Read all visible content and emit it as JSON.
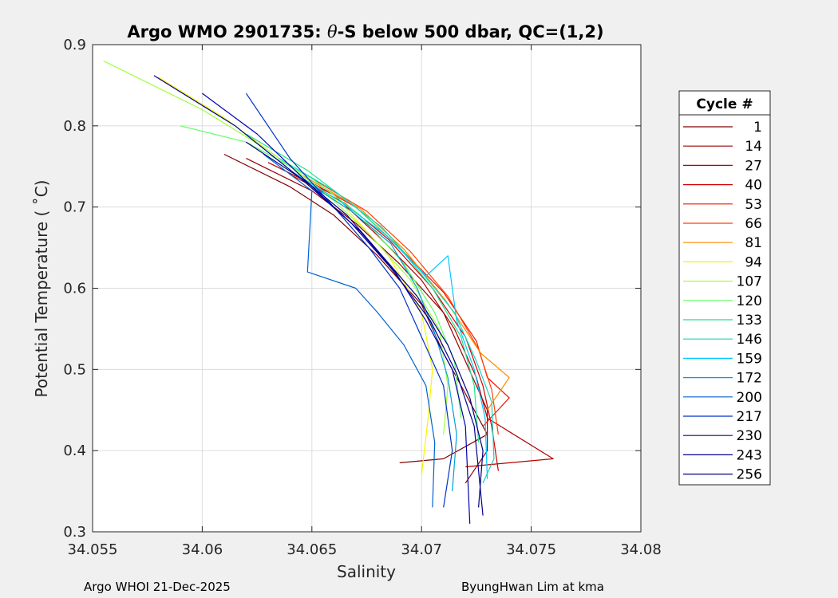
{
  "chart_data": {
    "type": "line",
    "title": "Argo WMO 2901735: θ-S below 500 dbar,  QC=(1,2)",
    "title_parts": {
      "prefix": "Argo WMO 2901735: ",
      "theta": "θ",
      "suffix": "-S below 500 dbar,  QC=(1,2)"
    },
    "xlabel": "Salinity",
    "ylabel": "Potential Temperature ( ˚C)",
    "xlim": [
      34.055,
      34.08
    ],
    "ylim": [
      0.3,
      0.9
    ],
    "xticks": [
      34.055,
      34.06,
      34.065,
      34.07,
      34.075,
      34.08
    ],
    "xtick_labels": [
      "34.055",
      "34.06",
      "34.065",
      "34.07",
      "34.075",
      "34.08"
    ],
    "yticks": [
      0.3,
      0.4,
      0.5,
      0.6,
      0.7,
      0.8,
      0.9
    ],
    "ytick_labels": [
      "0.3",
      "0.4",
      "0.5",
      "0.6",
      "0.7",
      "0.8",
      "0.9"
    ],
    "grid": true,
    "legend_placement": "outside-right",
    "legend_title": "Cycle #",
    "series": [
      {
        "name": "1",
        "color": "#800000",
        "points": [
          [
            34.061,
            0.765
          ],
          [
            34.064,
            0.725
          ],
          [
            34.066,
            0.69
          ],
          [
            34.068,
            0.64
          ],
          [
            34.07,
            0.58
          ],
          [
            34.071,
            0.52
          ],
          [
            34.072,
            0.47
          ],
          [
            34.073,
            0.42
          ],
          [
            34.071,
            0.39
          ],
          [
            34.069,
            0.385
          ]
        ]
      },
      {
        "name": "14",
        "color": "#9a0000",
        "points": [
          [
            34.062,
            0.76
          ],
          [
            34.065,
            0.72
          ],
          [
            34.067,
            0.68
          ],
          [
            34.069,
            0.63
          ],
          [
            34.071,
            0.57
          ],
          [
            34.072,
            0.51
          ],
          [
            34.073,
            0.45
          ],
          [
            34.073,
            0.4
          ],
          [
            34.072,
            0.36
          ]
        ]
      },
      {
        "name": "27",
        "color": "#b40000",
        "points": [
          [
            34.063,
            0.755
          ],
          [
            34.066,
            0.715
          ],
          [
            34.068,
            0.665
          ],
          [
            34.07,
            0.61
          ],
          [
            34.0715,
            0.55
          ],
          [
            34.0725,
            0.49
          ],
          [
            34.073,
            0.44
          ],
          [
            34.076,
            0.39
          ],
          [
            34.072,
            0.38
          ]
        ]
      },
      {
        "name": "40",
        "color": "#d20000",
        "points": [
          [
            34.064,
            0.74
          ],
          [
            34.0665,
            0.705
          ],
          [
            34.0685,
            0.66
          ],
          [
            34.0705,
            0.6
          ],
          [
            34.072,
            0.54
          ],
          [
            34.0728,
            0.48
          ],
          [
            34.0732,
            0.43
          ],
          [
            34.0735,
            0.375
          ]
        ]
      },
      {
        "name": "53",
        "color": "#f01400",
        "points": [
          [
            34.065,
            0.73
          ],
          [
            34.067,
            0.7
          ],
          [
            34.069,
            0.65
          ],
          [
            34.071,
            0.595
          ],
          [
            34.0725,
            0.535
          ],
          [
            34.073,
            0.49
          ],
          [
            34.074,
            0.465
          ],
          [
            34.0728,
            0.43
          ]
        ]
      },
      {
        "name": "66",
        "color": "#ff4000",
        "points": [
          [
            34.065,
            0.735
          ],
          [
            34.0675,
            0.695
          ],
          [
            34.0695,
            0.645
          ],
          [
            34.0712,
            0.59
          ],
          [
            34.0726,
            0.525
          ],
          [
            34.0732,
            0.475
          ],
          [
            34.0735,
            0.42
          ]
        ]
      },
      {
        "name": "81",
        "color": "#ff8c00",
        "points": [
          [
            34.0645,
            0.74
          ],
          [
            34.0672,
            0.698
          ],
          [
            34.0692,
            0.648
          ],
          [
            34.0711,
            0.585
          ],
          [
            34.0727,
            0.52
          ],
          [
            34.074,
            0.49
          ],
          [
            34.073,
            0.45
          ]
        ]
      },
      {
        "name": "94",
        "color": "#f5f500",
        "points": [
          [
            34.058,
            0.86
          ],
          [
            34.061,
            0.81
          ],
          [
            34.064,
            0.75
          ],
          [
            34.0665,
            0.7
          ],
          [
            34.0685,
            0.64
          ],
          [
            34.07,
            0.57
          ],
          [
            34.0705,
            0.5
          ],
          [
            34.0703,
            0.44
          ],
          [
            34.07,
            0.37
          ]
        ]
      },
      {
        "name": "107",
        "color": "#a0ff40",
        "points": [
          [
            34.0555,
            0.88
          ],
          [
            34.06,
            0.82
          ],
          [
            34.063,
            0.77
          ],
          [
            34.0655,
            0.72
          ],
          [
            34.0675,
            0.67
          ],
          [
            34.0695,
            0.61
          ],
          [
            34.0708,
            0.55
          ],
          [
            34.0712,
            0.48
          ],
          [
            34.071,
            0.42
          ]
        ]
      },
      {
        "name": "120",
        "color": "#60ff60",
        "points": [
          [
            34.059,
            0.8
          ],
          [
            34.062,
            0.78
          ],
          [
            34.065,
            0.735
          ],
          [
            34.0672,
            0.69
          ],
          [
            34.0692,
            0.63
          ],
          [
            34.0706,
            0.57
          ],
          [
            34.0715,
            0.51
          ],
          [
            34.0718,
            0.44
          ]
        ]
      },
      {
        "name": "133",
        "color": "#20e090",
        "points": [
          [
            34.062,
            0.79
          ],
          [
            34.0648,
            0.745
          ],
          [
            34.067,
            0.7
          ],
          [
            34.069,
            0.65
          ],
          [
            34.0705,
            0.6
          ],
          [
            34.0718,
            0.54
          ],
          [
            34.0724,
            0.48
          ],
          [
            34.0726,
            0.41
          ]
        ]
      },
      {
        "name": "146",
        "color": "#10d8c0",
        "points": [
          [
            34.0635,
            0.76
          ],
          [
            34.066,
            0.72
          ],
          [
            34.0682,
            0.675
          ],
          [
            34.07,
            0.62
          ],
          [
            34.0715,
            0.57
          ],
          [
            34.0725,
            0.51
          ],
          [
            34.0732,
            0.46
          ],
          [
            34.0733,
            0.39
          ],
          [
            34.0728,
            0.36
          ]
        ]
      },
      {
        "name": "159",
        "color": "#00c8ff",
        "points": [
          [
            34.064,
            0.745
          ],
          [
            34.0664,
            0.705
          ],
          [
            34.0684,
            0.665
          ],
          [
            34.0702,
            0.615
          ],
          [
            34.0712,
            0.64
          ],
          [
            34.0716,
            0.56
          ],
          [
            34.0724,
            0.5
          ],
          [
            34.0729,
            0.44
          ],
          [
            34.073,
            0.365
          ]
        ]
      },
      {
        "name": "172",
        "color": "#00a0d8",
        "points": [
          [
            34.0645,
            0.735
          ],
          [
            34.0668,
            0.695
          ],
          [
            34.0686,
            0.655
          ],
          [
            34.0698,
            0.6
          ],
          [
            34.0706,
            0.545
          ],
          [
            34.0712,
            0.49
          ],
          [
            34.0716,
            0.42
          ],
          [
            34.0714,
            0.35
          ]
        ]
      },
      {
        "name": "200",
        "color": "#0064d0",
        "points": [
          [
            34.0628,
            0.765
          ],
          [
            34.065,
            0.72
          ],
          [
            34.0648,
            0.62
          ],
          [
            34.067,
            0.6
          ],
          [
            34.068,
            0.57
          ],
          [
            34.0692,
            0.53
          ],
          [
            34.0702,
            0.48
          ],
          [
            34.0706,
            0.41
          ],
          [
            34.0705,
            0.33
          ]
        ]
      },
      {
        "name": "217",
        "color": "#0032c8",
        "points": [
          [
            34.062,
            0.84
          ],
          [
            34.064,
            0.76
          ],
          [
            34.066,
            0.7
          ],
          [
            34.0676,
            0.65
          ],
          [
            34.069,
            0.6
          ],
          [
            34.07,
            0.54
          ],
          [
            34.071,
            0.48
          ],
          [
            34.0714,
            0.4
          ],
          [
            34.071,
            0.33
          ]
        ]
      },
      {
        "name": "230",
        "color": "#0000b0",
        "points": [
          [
            34.06,
            0.84
          ],
          [
            34.0625,
            0.79
          ],
          [
            34.0652,
            0.72
          ],
          [
            34.0672,
            0.67
          ],
          [
            34.0688,
            0.62
          ],
          [
            34.0702,
            0.56
          ],
          [
            34.0714,
            0.5
          ],
          [
            34.072,
            0.43
          ],
          [
            34.0722,
            0.31
          ]
        ]
      },
      {
        "name": "243",
        "color": "#000090",
        "points": [
          [
            34.0578,
            0.862
          ],
          [
            34.0615,
            0.8
          ],
          [
            34.0645,
            0.735
          ],
          [
            34.0668,
            0.68
          ],
          [
            34.0686,
            0.625
          ],
          [
            34.0704,
            0.56
          ],
          [
            34.0716,
            0.495
          ],
          [
            34.0724,
            0.43
          ],
          [
            34.0728,
            0.32
          ]
        ]
      },
      {
        "name": "256",
        "color": "#000080",
        "points": [
          [
            34.062,
            0.78
          ],
          [
            34.0648,
            0.73
          ],
          [
            34.0666,
            0.69
          ],
          [
            34.0682,
            0.64
          ],
          [
            34.0698,
            0.59
          ],
          [
            34.0712,
            0.53
          ],
          [
            34.0722,
            0.465
          ],
          [
            34.0728,
            0.4
          ],
          [
            34.0726,
            0.33
          ]
        ]
      }
    ]
  },
  "footer": {
    "left": "Argo WHOI 21-Dec-2025",
    "right": "ByungHwan Lim at kma"
  }
}
